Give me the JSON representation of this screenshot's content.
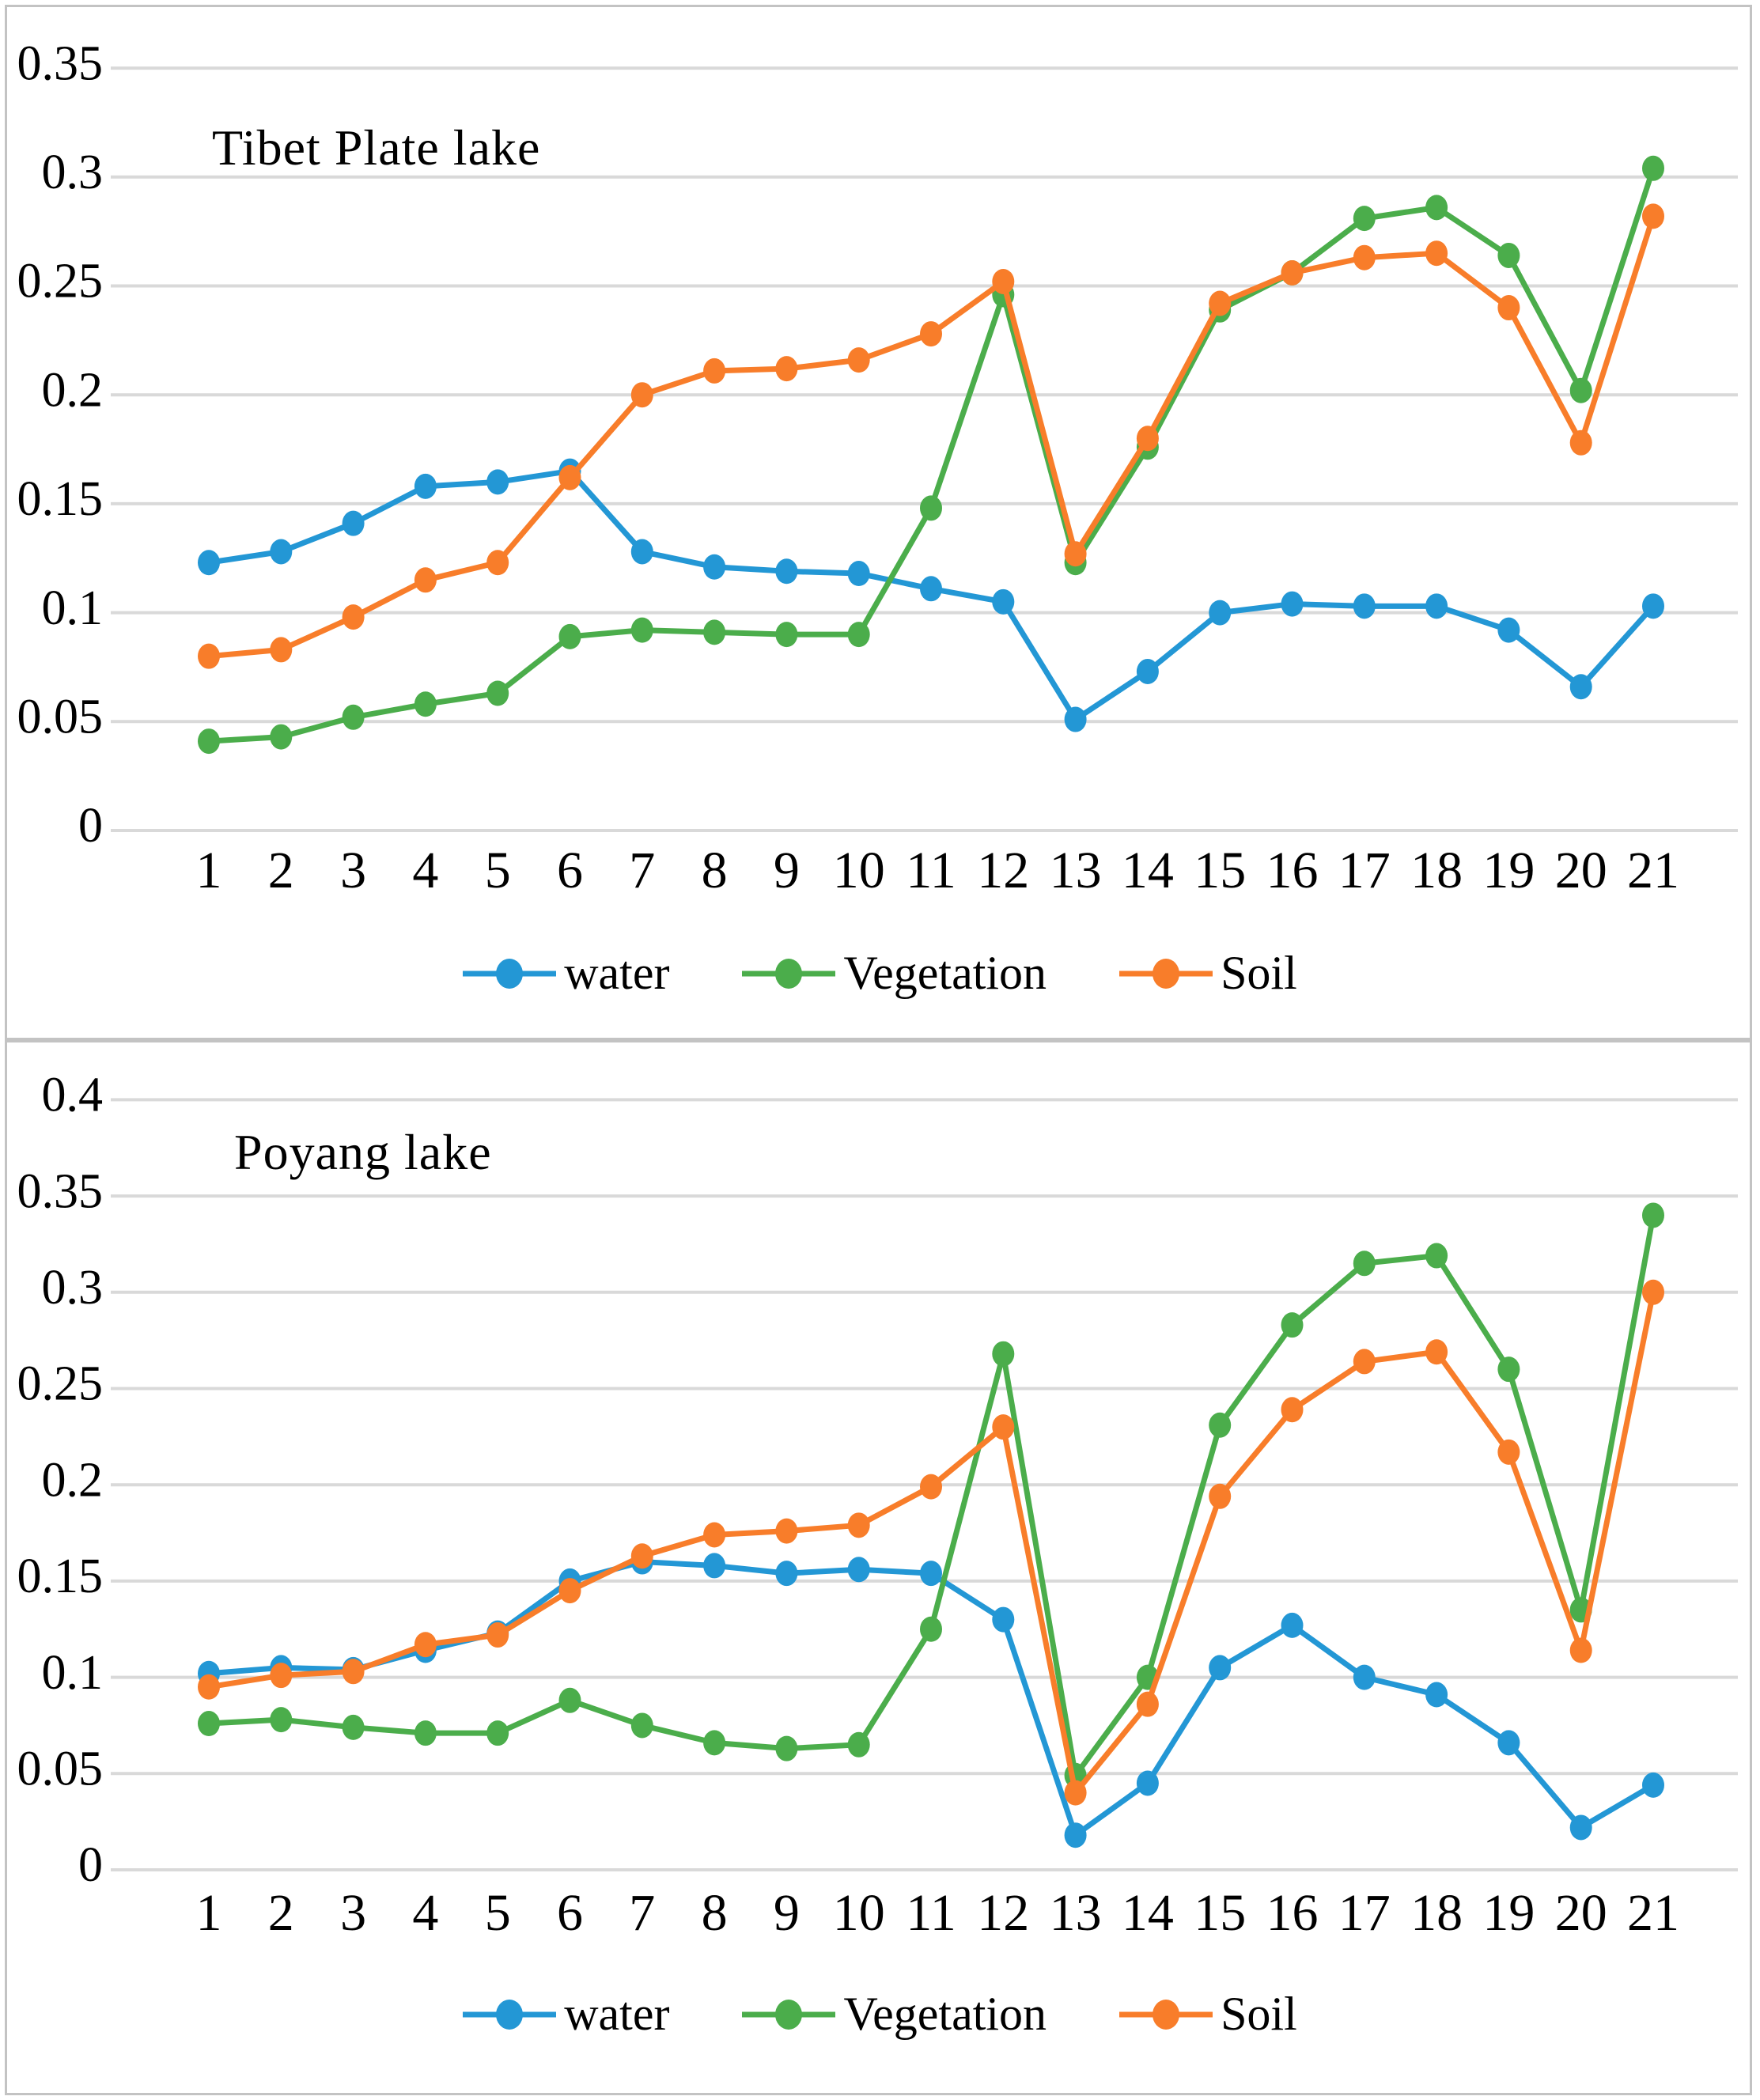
{
  "figure": {
    "background": "#ffffff",
    "panel_border_color": "#c3c3c3",
    "gridline_color": "#d9d9d9",
    "text_color": "#000000",
    "series_colors": {
      "water": "#2397d5",
      "vegetation": "#4bad4b",
      "soil": "#f87d2a"
    }
  },
  "chart_data": [
    {
      "type": "line",
      "title": "Tibet Plate lake",
      "x": [
        1,
        2,
        3,
        4,
        5,
        6,
        7,
        8,
        9,
        10,
        11,
        12,
        13,
        14,
        15,
        16,
        17,
        18,
        19,
        20,
        21
      ],
      "x_tick_labels": [
        "1",
        "2",
        "3",
        "4",
        "5",
        "6",
        "7",
        "8",
        "9",
        "10",
        "11",
        "12",
        "13",
        "14",
        "15",
        "16",
        "17",
        "18",
        "19",
        "20",
        "21"
      ],
      "xlabel": "",
      "ylabel": "",
      "ylim": [
        0,
        0.35
      ],
      "y_axis": {
        "min": 0,
        "max": 0.35,
        "step": 0.05,
        "tick_labels": [
          "0.35",
          "0.3",
          "0.25",
          "0.2",
          "0.15",
          "0.1",
          "0.05",
          "0"
        ]
      },
      "grid": true,
      "legend_position": "bottom",
      "series": [
        {
          "name": "water",
          "color": "#2397d5",
          "marker": "circle",
          "values": [
            0.123,
            0.128,
            0.141,
            0.158,
            0.16,
            0.165,
            0.128,
            0.121,
            0.119,
            0.118,
            0.111,
            0.105,
            0.051,
            0.073,
            0.1,
            0.104,
            0.103,
            0.103,
            0.092,
            0.066,
            0.103
          ]
        },
        {
          "name": "Vegetation",
          "color": "#4bad4b",
          "marker": "circle",
          "values": [
            0.041,
            0.043,
            0.052,
            0.058,
            0.063,
            0.089,
            0.092,
            0.091,
            0.09,
            0.09,
            0.148,
            0.246,
            0.123,
            0.176,
            0.239,
            0.256,
            0.281,
            0.286,
            0.264,
            0.202,
            0.304
          ]
        },
        {
          "name": "Soil",
          "color": "#f87d2a",
          "marker": "circle",
          "values": [
            0.08,
            0.083,
            0.098,
            0.115,
            0.123,
            0.162,
            0.2,
            0.211,
            0.212,
            0.216,
            0.228,
            0.252,
            0.127,
            0.18,
            0.242,
            0.256,
            0.263,
            0.265,
            0.24,
            0.178,
            0.282
          ]
        }
      ]
    },
    {
      "type": "line",
      "title": "Poyang lake",
      "x": [
        1,
        2,
        3,
        4,
        5,
        6,
        7,
        8,
        9,
        10,
        11,
        12,
        13,
        14,
        15,
        16,
        17,
        18,
        19,
        20,
        21
      ],
      "x_tick_labels": [
        "1",
        "2",
        "3",
        "4",
        "5",
        "6",
        "7",
        "8",
        "9",
        "10",
        "11",
        "12",
        "13",
        "14",
        "15",
        "16",
        "17",
        "18",
        "19",
        "20",
        "21"
      ],
      "xlabel": "",
      "ylabel": "",
      "ylim": [
        0,
        0.4
      ],
      "y_axis": {
        "min": 0,
        "max": 0.4,
        "step": 0.05,
        "tick_labels": [
          "0.4",
          "0.35",
          "0.3",
          "0.25",
          "0.2",
          "0.15",
          "0.1",
          "0.05",
          "0"
        ]
      },
      "grid": true,
      "legend_position": "bottom",
      "series": [
        {
          "name": "water",
          "color": "#2397d5",
          "marker": "circle",
          "values": [
            0.102,
            0.105,
            0.104,
            0.114,
            0.123,
            0.15,
            0.16,
            0.158,
            0.154,
            0.156,
            0.154,
            0.13,
            0.018,
            0.045,
            0.105,
            0.127,
            0.1,
            0.091,
            0.066,
            0.022,
            0.044
          ]
        },
        {
          "name": "Vegetation",
          "color": "#4bad4b",
          "marker": "circle",
          "values": [
            0.076,
            0.078,
            0.074,
            0.071,
            0.071,
            0.088,
            0.075,
            0.066,
            0.063,
            0.065,
            0.125,
            0.268,
            0.049,
            0.1,
            0.231,
            0.283,
            0.315,
            0.319,
            0.26,
            0.135,
            0.34
          ]
        },
        {
          "name": "Soil",
          "color": "#f87d2a",
          "marker": "circle",
          "values": [
            0.095,
            0.101,
            0.103,
            0.117,
            0.122,
            0.145,
            0.163,
            0.174,
            0.176,
            0.179,
            0.199,
            0.23,
            0.04,
            0.086,
            0.194,
            0.239,
            0.264,
            0.269,
            0.217,
            0.114,
            0.3
          ]
        }
      ]
    }
  ]
}
